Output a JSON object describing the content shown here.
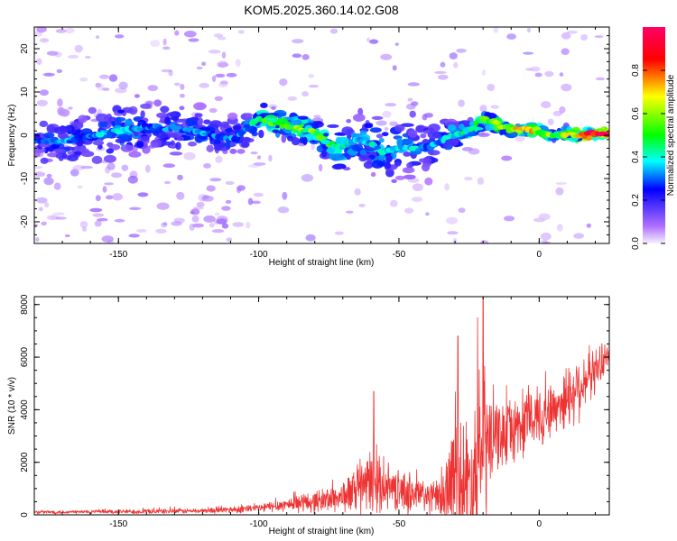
{
  "title": "KOM5.2025.360.14.02.G08",
  "colors": {
    "snr_line": "#ee3333",
    "frame": "#000000",
    "spec_low": "#a050ff",
    "spec_mid": "#0000ff",
    "spec_high": "#ff0000"
  },
  "chart_data": [
    {
      "type": "heatmap",
      "name": "spectrogram",
      "xlabel": "Height of straight line (km)",
      "ylabel": "Frequency (Hz)",
      "xlim": [
        -180,
        25
      ],
      "ylim": [
        -25,
        25
      ],
      "x_ticks": [
        -150,
        -100,
        -50,
        0
      ],
      "x_tick_labels": [
        "-150",
        "-100",
        "-50",
        "0"
      ],
      "y_ticks": [
        -20,
        -10,
        0,
        10,
        20
      ],
      "y_tick_labels": [
        "-20",
        "-10",
        "0",
        "10",
        "20"
      ],
      "ridge": {
        "description": "center frequency (Hz) of main energy band vs height (km)",
        "x": [
          -180,
          -170,
          -160,
          -150,
          -140,
          -130,
          -120,
          -110,
          -105,
          -100,
          -95,
          -90,
          -85,
          -80,
          -75,
          -70,
          -65,
          -60,
          -55,
          -50,
          -45,
          -40,
          -35,
          -30,
          -25,
          -20,
          -15,
          -10,
          -5,
          0,
          5,
          10,
          15,
          20,
          25
        ],
        "y": [
          -1,
          -1.5,
          0,
          1,
          2,
          1.5,
          0.5,
          -1,
          1,
          4,
          3,
          2,
          1.5,
          1,
          -2,
          -3,
          -1,
          -2,
          -4,
          -3,
          -3,
          -3,
          -1,
          0,
          1,
          4,
          2.5,
          1,
          1.5,
          1,
          0,
          0.5,
          0,
          0.5,
          0.5
        ],
        "amplitude": [
          0.25,
          0.3,
          0.3,
          0.35,
          0.3,
          0.3,
          0.3,
          0.3,
          0.3,
          0.45,
          0.5,
          0.5,
          0.55,
          0.5,
          0.45,
          0.4,
          0.35,
          0.35,
          0.35,
          0.35,
          0.35,
          0.3,
          0.35,
          0.4,
          0.45,
          0.5,
          0.55,
          0.6,
          0.7,
          0.6,
          0.5,
          0.6,
          0.7,
          0.9,
          0.85
        ],
        "spread_hz": [
          6,
          6,
          6,
          7,
          7,
          6,
          5,
          5,
          5,
          4,
          3,
          3,
          3,
          3,
          4,
          6,
          7,
          7,
          7,
          7,
          8,
          7,
          5,
          4,
          3,
          2,
          2,
          1.5,
          1.5,
          1.5,
          1.5,
          1.5,
          1.2,
          1.2,
          1.2
        ]
      }
    },
    {
      "type": "colorbar",
      "name": "amplitude-colorbar",
      "label": "Normalized spectral amplitude",
      "range": [
        0,
        1
      ],
      "ticks": [
        0.0,
        0.2,
        0.4,
        0.6,
        0.8
      ],
      "tick_labels": [
        "0.0",
        "0.2",
        "0.4",
        "0.6",
        "0.8"
      ],
      "stops": [
        {
          "value": 0.0,
          "color": "#f5f0ff"
        },
        {
          "value": 0.08,
          "color": "#b070ff"
        },
        {
          "value": 0.25,
          "color": "#0000ff"
        },
        {
          "value": 0.38,
          "color": "#00ffff"
        },
        {
          "value": 0.5,
          "color": "#00ff00"
        },
        {
          "value": 0.68,
          "color": "#ffff00"
        },
        {
          "value": 0.85,
          "color": "#ff0000"
        },
        {
          "value": 1.0,
          "color": "#ff0066"
        }
      ]
    },
    {
      "type": "line",
      "name": "snr",
      "xlabel": "Height of straight line (km)",
      "ylabel": "SNR (10 * v/v)",
      "xlim": [
        -180,
        25
      ],
      "ylim": [
        0,
        8300
      ],
      "x_ticks": [
        -150,
        -100,
        -50,
        0
      ],
      "x_tick_labels": [
        "-150",
        "-100",
        "-50",
        "0"
      ],
      "y_ticks": [
        0,
        2000,
        4000,
        6000,
        8000
      ],
      "y_tick_labels": [
        "0",
        "2000",
        "4000",
        "6000",
        "8000"
      ],
      "envelope": {
        "x": [
          -180,
          -150,
          -120,
          -100,
          -90,
          -80,
          -70,
          -60,
          -55,
          -50,
          -45,
          -40,
          -35,
          -30,
          -25,
          -20,
          -15,
          -10,
          -5,
          0,
          5,
          10,
          15,
          20,
          25
        ],
        "baseline": [
          100,
          120,
          150,
          250,
          400,
          500,
          700,
          1200,
          1100,
          900,
          800,
          700,
          600,
          1500,
          1200,
          2500,
          3000,
          3200,
          3500,
          3800,
          4000,
          4500,
          5000,
          5500,
          6200
        ],
        "amplitude": [
          80,
          100,
          120,
          200,
          300,
          500,
          700,
          1500,
          1000,
          900,
          1000,
          800,
          800,
          3000,
          3000,
          4000,
          1500,
          1500,
          1500,
          1500,
          1200,
          1500,
          1500,
          1000,
          600
        ]
      },
      "peaks": [
        {
          "x": -59,
          "y": 4700
        },
        {
          "x": -29,
          "y": 6800
        },
        {
          "x": -20,
          "y": 8300
        }
      ]
    }
  ]
}
